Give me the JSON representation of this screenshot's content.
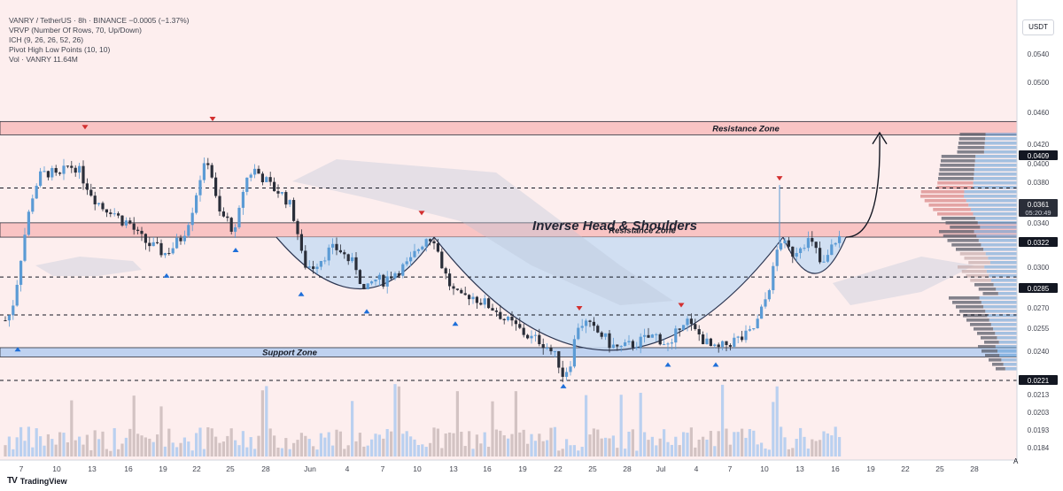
{
  "legend": {
    "line1": "VANRY / TetherUS · 8h · BINANCE  −0.0005 (−1.37%)",
    "line2": "VRVP (Number Of Rows, 70, Up/Down)",
    "line3": "ICH (9, 26, 26, 52, 26)",
    "line4": "Pivot High Low Points (10, 10)",
    "line5": "Vol · VANRY  11.64M"
  },
  "currency": "USDT",
  "branding": "TradingView",
  "logo_mark": "TV",
  "auto_button": "A",
  "colors": {
    "up": "#5b9bd5",
    "down": "#2a2e39",
    "zone_red": "#f7b5b5",
    "zone_blue": "#a9c8f0",
    "pattern_fill": "#c9dcf2",
    "pivot_up": "#1e6fd9",
    "pivot_down": "#d32f2f"
  },
  "chart_data": {
    "type": "candlestick",
    "symbol": "VANRY / TetherUS",
    "exchange": "BINANCE",
    "timeframe": "8h",
    "ylim": [
      0.018,
      0.056
    ],
    "y_ticks": [
      0.054,
      0.05,
      0.046,
      0.042,
      0.04,
      0.038,
      0.034,
      0.03,
      0.027,
      0.0255,
      0.024,
      0.0213,
      0.0203,
      0.0193,
      0.0184
    ],
    "price_labels": [
      {
        "value": 0.0409,
        "text": "0.0409"
      },
      {
        "value": 0.0361,
        "text": "0.0361",
        "sub": "05:20:49"
      },
      {
        "value": 0.0322,
        "text": "0.0322"
      },
      {
        "value": 0.0285,
        "text": "0.0285"
      },
      {
        "value": 0.0221,
        "text": "0.0221"
      }
    ],
    "x_labels": [
      "7",
      "10",
      "13",
      "16",
      "19",
      "22",
      "25",
      "28",
      "Jun",
      "4",
      "7",
      "10",
      "13",
      "16",
      "19",
      "22",
      "25",
      "28",
      "Jul",
      "4",
      "7",
      "10",
      "13",
      "16",
      "19",
      "22",
      "25",
      "28"
    ],
    "dashed_levels": [
      0.0409,
      0.0322,
      0.0285,
      0.0221
    ],
    "zones": [
      {
        "label": "Resistance Zone",
        "from": 0.0461,
        "to": 0.0474,
        "color": "red"
      },
      {
        "label": "Resistance Zone",
        "from": 0.0361,
        "to": 0.0375,
        "color": "red"
      },
      {
        "label": "Support Zone",
        "from": 0.0244,
        "to": 0.0253,
        "color": "blue"
      }
    ],
    "pattern_label": "Inverse Head & Shoulders",
    "price_anchors": [
      [
        0,
        0.0285
      ],
      [
        8,
        0.0278
      ],
      [
        16,
        0.03
      ],
      [
        26,
        0.0355
      ],
      [
        36,
        0.04
      ],
      [
        44,
        0.042
      ],
      [
        56,
        0.0425
      ],
      [
        66,
        0.0418
      ],
      [
        76,
        0.043
      ],
      [
        86,
        0.043
      ],
      [
        96,
        0.0415
      ],
      [
        106,
        0.04
      ],
      [
        116,
        0.039
      ],
      [
        126,
        0.0388
      ],
      [
        136,
        0.0378
      ],
      [
        146,
        0.0375
      ],
      [
        156,
        0.0362
      ],
      [
        166,
        0.0355
      ],
      [
        176,
        0.035
      ],
      [
        186,
        0.0345
      ],
      [
        196,
        0.0352
      ],
      [
        206,
        0.0362
      ],
      [
        216,
        0.0385
      ],
      [
        226,
        0.042
      ],
      [
        236,
        0.0438
      ],
      [
        246,
        0.0385
      ],
      [
        256,
        0.0378
      ],
      [
        266,
        0.0365
      ],
      [
        276,
        0.0415
      ],
      [
        286,
        0.0428
      ],
      [
        296,
        0.042
      ],
      [
        306,
        0.041
      ],
      [
        316,
        0.0405
      ],
      [
        326,
        0.0395
      ],
      [
        334,
        0.0375
      ],
      [
        342,
        0.0335
      ],
      [
        352,
        0.0332
      ],
      [
        362,
        0.034
      ],
      [
        372,
        0.0348
      ],
      [
        382,
        0.035
      ],
      [
        392,
        0.034
      ],
      [
        402,
        0.0332
      ],
      [
        412,
        0.0305
      ],
      [
        422,
        0.032
      ],
      [
        432,
        0.0318
      ],
      [
        442,
        0.0325
      ],
      [
        452,
        0.033
      ],
      [
        462,
        0.0335
      ],
      [
        472,
        0.035
      ],
      [
        482,
        0.0362
      ],
      [
        490,
        0.036
      ],
      [
        500,
        0.033
      ],
      [
        510,
        0.031
      ],
      [
        520,
        0.03
      ],
      [
        530,
        0.0305
      ],
      [
        540,
        0.03
      ],
      [
        550,
        0.0295
      ],
      [
        560,
        0.029
      ],
      [
        570,
        0.028
      ],
      [
        580,
        0.0275
      ],
      [
        590,
        0.0268
      ],
      [
        600,
        0.0262
      ],
      [
        610,
        0.026
      ],
      [
        620,
        0.0252
      ],
      [
        630,
        0.024
      ],
      [
        636,
        0.0225
      ],
      [
        644,
        0.024
      ],
      [
        652,
        0.0275
      ],
      [
        660,
        0.0278
      ],
      [
        670,
        0.027
      ],
      [
        680,
        0.0265
      ],
      [
        690,
        0.0255
      ],
      [
        700,
        0.0252
      ],
      [
        710,
        0.0255
      ],
      [
        720,
        0.0258
      ],
      [
        730,
        0.0262
      ],
      [
        740,
        0.0265
      ],
      [
        750,
        0.0258
      ],
      [
        758,
        0.0252
      ],
      [
        766,
        0.0275
      ],
      [
        774,
        0.0282
      ],
      [
        782,
        0.027
      ],
      [
        790,
        0.0265
      ],
      [
        800,
        0.0255
      ],
      [
        808,
        0.025
      ],
      [
        818,
        0.0255
      ],
      [
        828,
        0.026
      ],
      [
        838,
        0.0262
      ],
      [
        848,
        0.0268
      ],
      [
        856,
        0.028
      ],
      [
        864,
        0.03
      ],
      [
        872,
        0.0325
      ],
      [
        880,
        0.036
      ],
      [
        888,
        0.035
      ],
      [
        896,
        0.0345
      ],
      [
        904,
        0.0355
      ],
      [
        912,
        0.0358
      ],
      [
        920,
        0.035
      ],
      [
        928,
        0.033
      ],
      [
        936,
        0.0345
      ],
      [
        944,
        0.036
      ],
      [
        950,
        0.0361
      ]
    ],
    "pivots_high": [
      [
        96,
        0.0462
      ],
      [
        240,
        0.047
      ],
      [
        476,
        0.0378
      ],
      [
        654,
        0.0285
      ],
      [
        769,
        0.0288
      ],
      [
        880,
        0.0412
      ]
    ],
    "pivots_low": [
      [
        20,
        0.0258
      ],
      [
        188,
        0.033
      ],
      [
        266,
        0.0355
      ],
      [
        340,
        0.0312
      ],
      [
        414,
        0.0295
      ],
      [
        514,
        0.0283
      ],
      [
        636,
        0.0222
      ],
      [
        754,
        0.0243
      ],
      [
        808,
        0.0243
      ]
    ],
    "volume_note": "volume bars shown at bottom of chart"
  }
}
